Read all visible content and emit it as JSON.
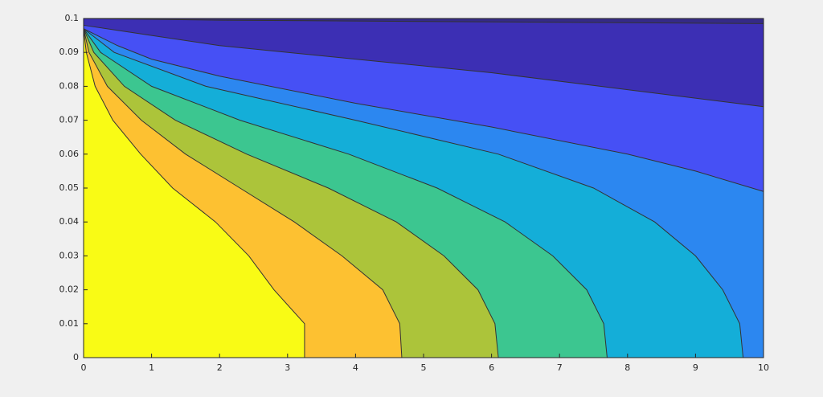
{
  "chart_data": {
    "type": "contour",
    "xlim": [
      0,
      10
    ],
    "ylim": [
      0,
      0.1
    ],
    "xticks": [
      0,
      1,
      2,
      3,
      4,
      5,
      6,
      7,
      8,
      9,
      10
    ],
    "yticks": [
      0,
      0.01,
      0.02,
      0.03,
      0.04,
      0.05,
      0.06,
      0.07,
      0.08,
      0.09,
      0.1
    ],
    "band_colors": [
      "#f9fb15",
      "#fdc131",
      "#acc43a",
      "#3cc690",
      "#14aed8",
      "#2c87f0",
      "#4650f5",
      "#3c2fb4",
      "#352a87"
    ],
    "line_color": "#333333",
    "contours": [
      {
        "x": [
          3.25,
          3.25,
          2.8,
          2.43,
          1.94,
          1.31,
          0.84,
          0.43,
          0.17,
          0.04,
          0
        ],
        "y": [
          0,
          0.01,
          0.02,
          0.03,
          0.04,
          0.05,
          0.06,
          0.07,
          0.08,
          0.09,
          0.097
        ]
      },
      {
        "x": [
          4.68,
          4.65,
          4.4,
          3.8,
          3.1,
          2.3,
          1.5,
          0.85,
          0.35,
          0.08,
          0
        ],
        "y": [
          0,
          0.01,
          0.02,
          0.03,
          0.04,
          0.05,
          0.06,
          0.07,
          0.08,
          0.09,
          0.097
        ]
      },
      {
        "x": [
          6.1,
          6.05,
          5.8,
          5.3,
          4.6,
          3.6,
          2.4,
          1.35,
          0.6,
          0.15,
          0
        ],
        "y": [
          0,
          0.01,
          0.02,
          0.03,
          0.04,
          0.05,
          0.06,
          0.07,
          0.08,
          0.09,
          0.097
        ]
      },
      {
        "x": [
          7.7,
          7.65,
          7.4,
          6.9,
          6.2,
          5.2,
          3.9,
          2.3,
          1.0,
          0.25,
          0
        ],
        "y": [
          0,
          0.01,
          0.02,
          0.03,
          0.04,
          0.05,
          0.06,
          0.07,
          0.08,
          0.09,
          0.097
        ]
      },
      {
        "x": [
          9.7,
          9.65,
          9.4,
          9.0,
          8.4,
          7.5,
          6.1,
          4.0,
          1.8,
          0.45,
          0
        ],
        "y": [
          0,
          0.01,
          0.02,
          0.03,
          0.04,
          0.05,
          0.06,
          0.07,
          0.08,
          0.09,
          0.097
        ]
      },
      {
        "x": [
          10,
          9,
          8,
          6,
          4,
          2,
          1,
          0.5,
          0
        ],
        "y": [
          0.049,
          0.055,
          0.06,
          0.068,
          0.075,
          0.083,
          0.088,
          0.092,
          0.097
        ]
      },
      {
        "x": [
          10,
          8,
          6,
          4,
          2,
          1,
          0
        ],
        "y": [
          0.074,
          0.079,
          0.084,
          0.088,
          0.092,
          0.095,
          0.098
        ]
      },
      {
        "x": [
          10,
          6,
          2,
          0
        ],
        "y": [
          0.0985,
          0.099,
          0.0995,
          0.1
        ]
      }
    ]
  }
}
